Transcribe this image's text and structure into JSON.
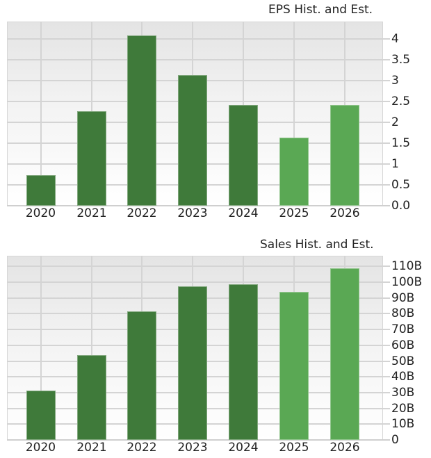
{
  "colors": {
    "historical": "#3f7a3a",
    "estimate": "#5aa854",
    "grid": "#d4d4d4"
  },
  "chart_data": [
    {
      "type": "bar",
      "title": "EPS Hist. and Est.",
      "categories": [
        "2020",
        "2021",
        "2022",
        "2023",
        "2024",
        "2025",
        "2026"
      ],
      "values": [
        0.73,
        2.27,
        4.08,
        3.13,
        2.42,
        1.63,
        2.42
      ],
      "kind": [
        "historical",
        "historical",
        "historical",
        "historical",
        "historical",
        "estimate",
        "estimate"
      ],
      "xlabel": "",
      "ylabel": "",
      "ylim": [
        0,
        4.25
      ],
      "yticks": [
        "0.0",
        "0.5",
        "1",
        "1.5",
        "2",
        "2.5",
        "3",
        "3.5",
        "4"
      ],
      "ytick_values": [
        0,
        0.5,
        1,
        1.5,
        2,
        2.5,
        3,
        3.5,
        4
      ],
      "grid": true,
      "y_axis_position": "right"
    },
    {
      "type": "bar",
      "title": "Sales Hist. and Est.",
      "categories": [
        "2020",
        "2021",
        "2022",
        "2023",
        "2024",
        "2025",
        "2026"
      ],
      "values": [
        31.3,
        53.8,
        81.5,
        97.3,
        98.5,
        93.8,
        108.8
      ],
      "units": "B",
      "kind": [
        "historical",
        "historical",
        "historical",
        "historical",
        "historical",
        "estimate",
        "estimate"
      ],
      "xlabel": "",
      "ylabel": "",
      "ylim": [
        0,
        116
      ],
      "yticks": [
        "0",
        "10B",
        "20B",
        "30B",
        "40B",
        "50B",
        "60B",
        "70B",
        "80B",
        "90B",
        "100B",
        "110B"
      ],
      "ytick_values": [
        0,
        10,
        20,
        30,
        40,
        50,
        60,
        70,
        80,
        90,
        100,
        110
      ],
      "grid": true,
      "y_axis_position": "right"
    }
  ]
}
